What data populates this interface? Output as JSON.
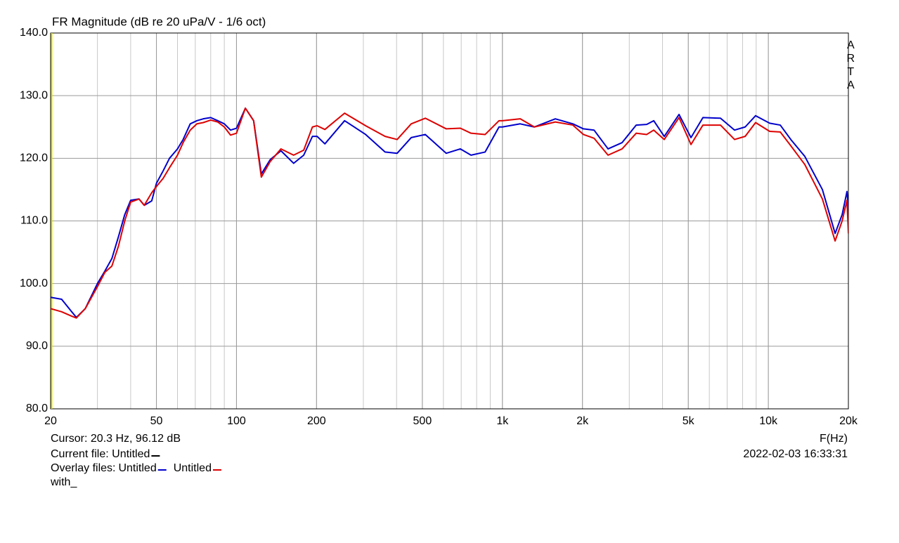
{
  "chart_data": {
    "type": "line",
    "title": "FR Magnitude (dB re 20 uPa/V - 1/6 oct)",
    "x_label": "F(Hz)",
    "watermark": "ARTA",
    "cursor": "Cursor: 20.3 Hz, 96.12 dB",
    "current_file": "Current file: Untitled",
    "overlay_label": "Overlay files:",
    "note": "with_",
    "timestamp": "2022-02-03  16:33:31",
    "log_x": true,
    "grid": true,
    "xlim": [
      20,
      20000
    ],
    "ylim": [
      80,
      140
    ],
    "xticks": [
      20,
      50,
      100,
      200,
      500,
      {
        "value": 1000,
        "label": "1k"
      },
      {
        "value": 2000,
        "label": "2k"
      },
      {
        "value": 5000,
        "label": "5k"
      },
      {
        "value": 10000,
        "label": "10k"
      },
      {
        "value": 20000,
        "label": "20k"
      }
    ],
    "yticks": [
      {
        "value": 80,
        "label": "80.0"
      },
      {
        "value": 90,
        "label": "90.0"
      },
      {
        "value": 100,
        "label": "100.0"
      },
      {
        "value": 110,
        "label": "110.0"
      },
      {
        "value": 120,
        "label": "120.0"
      },
      {
        "value": 130,
        "label": "130.0"
      },
      {
        "value": 140,
        "label": "140.0"
      }
    ],
    "x": [
      20,
      22,
      24,
      25,
      27,
      30,
      32,
      34,
      36,
      38,
      40,
      43,
      45,
      48,
      50,
      53,
      56,
      60,
      63,
      67,
      71,
      75,
      80,
      85,
      90,
      95,
      100,
      108,
      116,
      124,
      134,
      147,
      164,
      179,
      193,
      201,
      215,
      255,
      306,
      362,
      402,
      454,
      513,
      615,
      695,
      762,
      861,
      971,
      1000,
      1167,
      1318,
      1581,
      1841,
      2017,
      2211,
      2496,
      2819,
      3184,
      3488,
      3707,
      4061,
      4615,
      5118,
      5676,
      6608,
      7465,
      8183,
      8956,
      10117,
      11088,
      12148,
      13716,
      15971,
      17827,
      18945,
      19758,
      20000
    ],
    "series": [
      {
        "name": "Untitled",
        "color": "#0000cc",
        "values": [
          97.8,
          97.5,
          95.5,
          94.6,
          96,
          100,
          102,
          104,
          107.5,
          111,
          113.3,
          113.5,
          112.5,
          113.2,
          116,
          118,
          120,
          121.5,
          123,
          125.5,
          126,
          126.3,
          126.5,
          126,
          125.5,
          124.5,
          124.8,
          128,
          126,
          117.5,
          119.8,
          121.2,
          119.2,
          120.5,
          123.5,
          123.5,
          122.3,
          126,
          123.8,
          121,
          120.8,
          123.3,
          123.8,
          120.8,
          121.5,
          120.5,
          121,
          125,
          125,
          125.5,
          125,
          126.3,
          125.5,
          124.7,
          124.5,
          121.5,
          122.5,
          125.3,
          125.4,
          126,
          123.5,
          127,
          123.3,
          126.5,
          126.4,
          124.5,
          125,
          126.8,
          125.6,
          125.3,
          123,
          120.3,
          115,
          108,
          111,
          114.7,
          112
        ]
      },
      {
        "name": "Untitled",
        "color": "#dd0000",
        "values": [
          96,
          95.5,
          94.8,
          94.5,
          96,
          99.5,
          101.8,
          102.8,
          106,
          110,
          113,
          113.5,
          112.5,
          114.5,
          115.5,
          116.8,
          118.5,
          120.5,
          122.5,
          124.5,
          125.5,
          125.7,
          126.1,
          125.8,
          125,
          123.7,
          124,
          128,
          126,
          117,
          119.5,
          121.5,
          120.5,
          121.3,
          125,
          125.2,
          124.6,
          127.2,
          125.2,
          123.5,
          123,
          125.5,
          126.4,
          124.7,
          124.8,
          124,
          123.8,
          126,
          126,
          126.3,
          125,
          125.8,
          125.3,
          123.8,
          123.2,
          120.5,
          121.5,
          124,
          123.8,
          124.5,
          123,
          126.5,
          122.2,
          125.3,
          125.3,
          123,
          123.5,
          125.7,
          124.3,
          124.2,
          122,
          119,
          113.5,
          106.8,
          110,
          113.3,
          108
        ]
      }
    ]
  }
}
